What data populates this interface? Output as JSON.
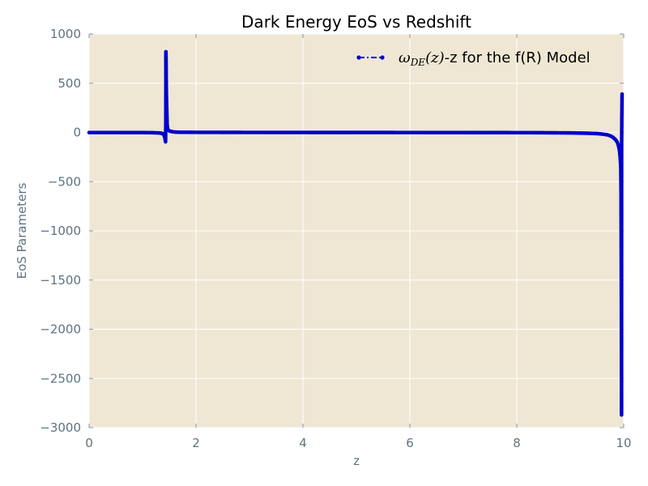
{
  "chart_data": {
    "type": "line",
    "title": "Dark Energy EoS vs Redshift",
    "xlabel": "z",
    "ylabel": "EoS Parameters",
    "xlim": [
      0,
      10
    ],
    "ylim": [
      -3000,
      1000
    ],
    "xticks": [
      0,
      2,
      4,
      6,
      8,
      10
    ],
    "yticks": [
      1000,
      500,
      0,
      -500,
      -1000,
      -1500,
      -2000,
      -2500,
      -3000
    ],
    "xtick_labels": [
      "0",
      "2",
      "4",
      "6",
      "8",
      "10"
    ],
    "ytick_labels": [
      "1000",
      "500",
      "0",
      "−500",
      "−1000",
      "−1500",
      "−2000",
      "−2500",
      "−3000"
    ],
    "grid": true,
    "legend_position": "top-right",
    "series": [
      {
        "name": "ωDE(z)-z for the f(R) Model",
        "legend_math": "ω",
        "legend_math_sub": "DE",
        "legend_math_arg": "(z)",
        "legend_suffix": "-z for the f(R) Model",
        "color": "#0000cc",
        "line_style": "dash-dot",
        "marker": "circle",
        "points": [
          [
            0.0,
            -1.0
          ],
          [
            0.2,
            -1.0
          ],
          [
            0.4,
            -1.0
          ],
          [
            0.6,
            -1.1
          ],
          [
            0.8,
            -1.2
          ],
          [
            1.0,
            -1.5
          ],
          [
            1.2,
            -3
          ],
          [
            1.3,
            -5
          ],
          [
            1.35,
            -8
          ],
          [
            1.38,
            -14
          ],
          [
            1.4,
            -25
          ],
          [
            1.42,
            -60
          ],
          [
            1.43,
            -95
          ],
          [
            1.435,
            120
          ],
          [
            1.437,
            820
          ],
          [
            1.44,
            700
          ],
          [
            1.442,
            560
          ],
          [
            1.445,
            420
          ],
          [
            1.45,
            300
          ],
          [
            1.455,
            180
          ],
          [
            1.46,
            80
          ],
          [
            1.47,
            40
          ],
          [
            1.48,
            25
          ],
          [
            1.5,
            15
          ],
          [
            1.55,
            8
          ],
          [
            1.6,
            4
          ],
          [
            1.7,
            2
          ],
          [
            2.0,
            1
          ],
          [
            3.0,
            0
          ],
          [
            4.0,
            -0.5
          ],
          [
            5.0,
            -0.8
          ],
          [
            6.0,
            -1.0
          ],
          [
            7.0,
            -1.5
          ],
          [
            8.0,
            -2
          ],
          [
            8.5,
            -3
          ],
          [
            9.0,
            -5
          ],
          [
            9.3,
            -8
          ],
          [
            9.5,
            -12
          ],
          [
            9.6,
            -17
          ],
          [
            9.7,
            -25
          ],
          [
            9.75,
            -35
          ],
          [
            9.8,
            -50
          ],
          [
            9.85,
            -75
          ],
          [
            9.88,
            -100
          ],
          [
            9.9,
            -130
          ],
          [
            9.92,
            -180
          ],
          [
            9.935,
            -260
          ],
          [
            9.945,
            -350
          ],
          [
            9.95,
            -600
          ],
          [
            9.955,
            -1500
          ],
          [
            9.96,
            -2870
          ],
          [
            9.962,
            -100
          ],
          [
            9.965,
            150
          ],
          [
            9.968,
            290
          ],
          [
            9.97,
            390
          ]
        ]
      }
    ]
  }
}
